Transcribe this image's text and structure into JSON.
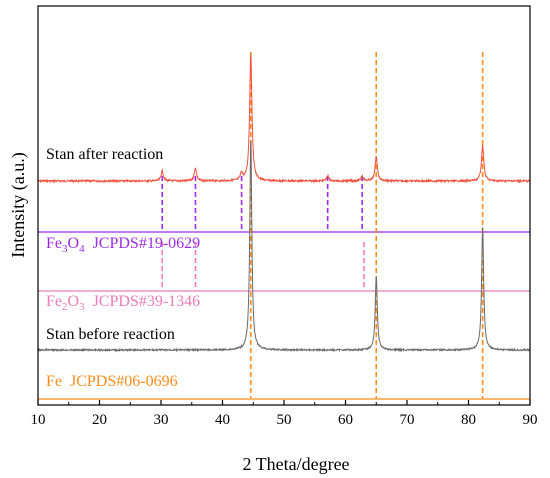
{
  "chart_data": {
    "type": "line",
    "xlabel": "2 Theta/degree",
    "ylabel": "Intensity (a.u.)",
    "xlim": [
      10,
      90
    ],
    "x_ticks": [
      "10",
      "20",
      "30",
      "40",
      "50",
      "60",
      "70",
      "80",
      "90"
    ],
    "y_ticks": "none",
    "colors": {
      "after": "#f0503c",
      "before": "#6a6a6a",
      "fe3o4": "#9b2bea",
      "fe2o3": "#ee7ab8",
      "fe": "#ff8c1a"
    },
    "series": [
      {
        "name": "Stan after reaction",
        "key": "after",
        "peaks": [
          {
            "x": 30.2,
            "h": 0.08
          },
          {
            "x": 35.6,
            "h": 0.1
          },
          {
            "x": 43.1,
            "h": 0.06
          },
          {
            "x": 44.6,
            "h": 1.0
          },
          {
            "x": 57.1,
            "h": 0.04
          },
          {
            "x": 62.7,
            "h": 0.04
          },
          {
            "x": 65.0,
            "h": 0.19
          },
          {
            "x": 82.3,
            "h": 0.28
          }
        ]
      },
      {
        "name": "Stan before reaction",
        "key": "before",
        "peaks": [
          {
            "x": 44.6,
            "h": 1.0
          },
          {
            "x": 65.0,
            "h": 0.35
          },
          {
            "x": 82.3,
            "h": 0.58
          }
        ]
      }
    ],
    "references": [
      {
        "key": "fe3o4",
        "label_pre": "Fe",
        "label_sub1": "3",
        "label_mid": "O",
        "label_sub2": "4",
        "label_post": "  JCPDS#19-0629",
        "positions": [
          30.2,
          35.6,
          43.1,
          57.1,
          62.7
        ]
      },
      {
        "key": "fe2o3",
        "label_pre": "Fe",
        "label_sub1": "2",
        "label_mid": "O",
        "label_sub2": "3",
        "label_post": "  JCPDS#39-1346",
        "positions": [
          30.2,
          35.6,
          63.0
        ]
      },
      {
        "key": "fe",
        "label_pre": "Fe",
        "label_sub1": "",
        "label_mid": "",
        "label_sub2": "",
        "label_post": "  JCPDS#06-0696",
        "positions": [
          44.6,
          65.0,
          82.3
        ]
      }
    ]
  }
}
